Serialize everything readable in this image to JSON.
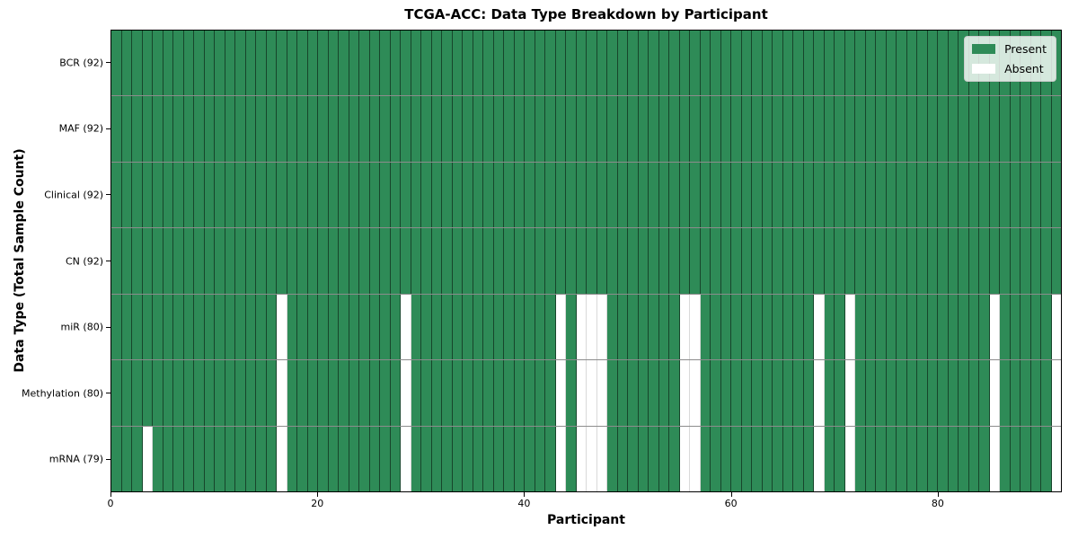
{
  "title": "TCGA-ACC: Data Type Breakdown by Participant",
  "xlabel": "Participant",
  "ylabel": "Data Type (Total Sample Count)",
  "legend": {
    "entries": [
      {
        "label": "Present",
        "color": "#2e8b57"
      },
      {
        "label": "Absent",
        "color": "#ffffff"
      }
    ],
    "position": "upper right"
  },
  "chart_data": {
    "type": "heatmap",
    "title": "TCGA-ACC: Data Type Breakdown by Participant",
    "xlabel": "Participant",
    "ylabel": "Data Type (Total Sample Count)",
    "x_range": [
      0,
      92
    ],
    "x_ticks": [
      0,
      20,
      40,
      60,
      80
    ],
    "n_participants": 92,
    "grid": true,
    "legend_position": "upper right",
    "colors": {
      "present": "#2e8b57",
      "absent": "#ffffff"
    },
    "rows": [
      {
        "label": "BCR (92)",
        "data_type": "BCR",
        "total_samples": 92,
        "absent_participants": []
      },
      {
        "label": "MAF (92)",
        "data_type": "MAF",
        "total_samples": 92,
        "absent_participants": []
      },
      {
        "label": "Clinical (92)",
        "data_type": "Clinical",
        "total_samples": 92,
        "absent_participants": []
      },
      {
        "label": "CN (92)",
        "data_type": "CN",
        "total_samples": 92,
        "absent_participants": []
      },
      {
        "label": "miR (80)",
        "data_type": "miR",
        "total_samples": 80,
        "absent_participants": [
          16,
          28,
          43,
          45,
          46,
          47,
          55,
          56,
          68,
          71,
          85,
          91
        ]
      },
      {
        "label": "Methylation (80)",
        "data_type": "Methylation",
        "total_samples": 80,
        "absent_participants": [
          16,
          28,
          43,
          45,
          46,
          47,
          55,
          56,
          68,
          71,
          85,
          91
        ]
      },
      {
        "label": "mRNA (79)",
        "data_type": "mRNA",
        "total_samples": 79,
        "absent_participants": [
          3,
          16,
          28,
          43,
          45,
          46,
          47,
          55,
          56,
          68,
          71,
          85,
          91
        ]
      }
    ]
  }
}
